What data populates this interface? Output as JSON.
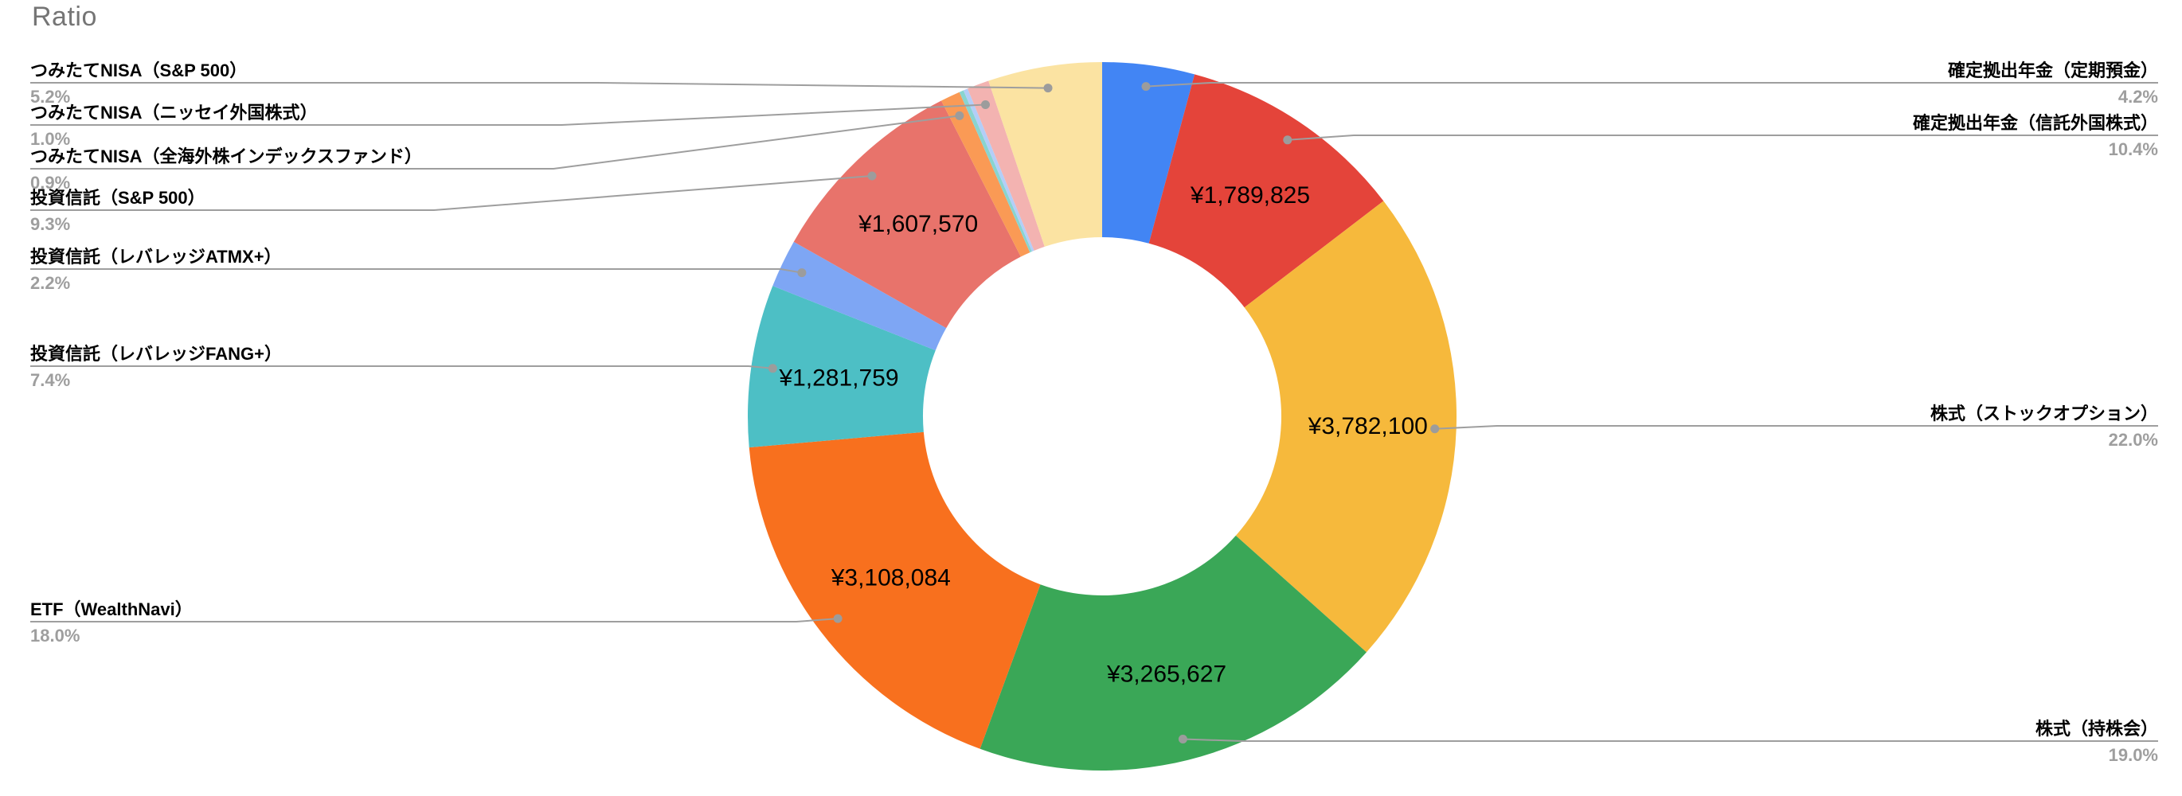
{
  "title": "Ratio",
  "chart_data": {
    "type": "pie",
    "subtype": "donut",
    "title": "Ratio",
    "background_color": "#FFFFFF",
    "leader_line_color": "#9E9E9E",
    "value_label_color": "#000000",
    "percent_label_color": "#9E9E9E",
    "start_angle_deg": 0,
    "direction": "clockwise",
    "total_percent": 100.0,
    "slices": [
      {
        "label": "確定拠出年金（定期預金）",
        "percent": 4.2,
        "percent_label": "4.2%",
        "amount_label": "",
        "color": "#4285F4",
        "label_side": "right"
      },
      {
        "label": "確定拠出年金（信託外国株式）",
        "percent": 10.4,
        "percent_label": "10.4%",
        "amount_label": "¥1,789,825",
        "color": "#E4443A",
        "label_side": "right"
      },
      {
        "label": "株式（ストックオプション）",
        "percent": 22.0,
        "percent_label": "22.0%",
        "amount_label": "¥3,782,100",
        "color": "#F6B93C",
        "label_side": "right"
      },
      {
        "label": "株式（持株会）",
        "percent": 19.0,
        "percent_label": "19.0%",
        "amount_label": "¥3,265,627",
        "color": "#3AA757",
        "label_side": "right"
      },
      {
        "label": "ETF（WealthNavi）",
        "percent": 18.0,
        "percent_label": "18.0%",
        "amount_label": "¥3,108,084",
        "color": "#F8701E",
        "label_side": "left"
      },
      {
        "label": "投資信託（レバレッジFANG+）",
        "percent": 7.4,
        "percent_label": "7.4%",
        "amount_label": "¥1,281,759",
        "color": "#4DBFC5",
        "label_side": "left"
      },
      {
        "label": "投資信託（レバレッジATMX+）",
        "percent": 2.2,
        "percent_label": "2.2%",
        "amount_label": "",
        "color": "#7EA6F4",
        "label_side": "left"
      },
      {
        "label": "投資信託（S&P 500）",
        "percent": 9.3,
        "percent_label": "9.3%",
        "amount_label": "¥1,607,570",
        "color": "#E8736B",
        "label_side": "left"
      },
      {
        "label": "つみたてNISA（全海外株インデックスファンド）",
        "percent": 0.9,
        "percent_label": "0.9%",
        "amount_label": "",
        "color": "#FA9A55",
        "label_side": "left"
      },
      {
        "label": "",
        "percent": 0.2,
        "percent_label": "",
        "amount_label": "",
        "color": "#89D4D0",
        "label_side": ""
      },
      {
        "label": "",
        "percent": 0.2,
        "percent_label": "",
        "amount_label": "",
        "color": "#B3CEF8",
        "label_side": ""
      },
      {
        "label": "つみたてNISA（ニッセイ外国株式）",
        "percent": 1.0,
        "percent_label": "1.0%",
        "amount_label": "",
        "color": "#F3B3B1",
        "label_side": "left"
      },
      {
        "label": "つみたてNISA（S&P 500）",
        "percent": 5.2,
        "percent_label": "5.2%",
        "amount_label": "",
        "color": "#FBE3A2",
        "label_side": "left"
      }
    ]
  }
}
